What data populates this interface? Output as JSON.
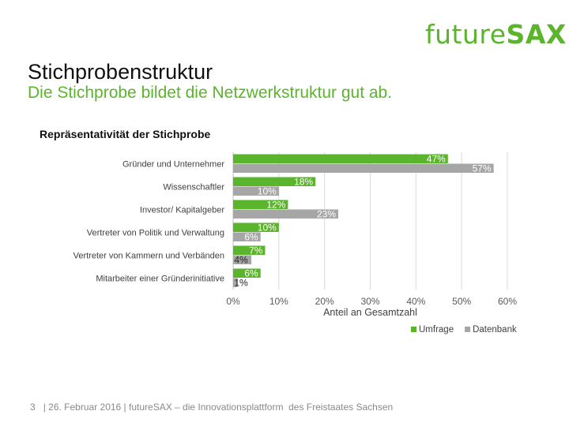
{
  "logo": {
    "light": "future",
    "bold": "SAX"
  },
  "header": {
    "title": "Stichprobenstruktur",
    "subtitle": "Die Stichprobe bildet die Netzwerkstruktur gut ab."
  },
  "footer": {
    "page": "3",
    "text": "| 26. Februar 2016 | futureSAX – die Innovationsplattform  des Freistaates Sachsen"
  },
  "colors": {
    "umfrage": "#5bb52c",
    "datenbank": "#a6a6a6",
    "grid": "#d9d9d9"
  },
  "chart_data": {
    "type": "bar",
    "orientation": "horizontal",
    "title": "Repräsentativität der Stichprobe",
    "xlabel": "Anteil an Gesamtzahl",
    "ylabel": "",
    "xlim": [
      0,
      60
    ],
    "xticks": [
      "0%",
      "10%",
      "20%",
      "30%",
      "40%",
      "50%",
      "60%"
    ],
    "grid": true,
    "legend_position": "bottom-right",
    "categories": [
      "Gründer und Unternehmer",
      "Wissenschaftler",
      "Investor/ Kapitalgeber",
      "Vertreter von Politik und Verwaltung",
      "Vertreter von Kammern und Verbänden",
      "Mitarbeiter einer Gründerinitiative"
    ],
    "series": [
      {
        "name": "Umfrage",
        "values": [
          47,
          18,
          12,
          10,
          7,
          6
        ]
      },
      {
        "name": "Datenbank",
        "values": [
          57,
          10,
          23,
          6,
          4,
          1
        ]
      }
    ]
  }
}
